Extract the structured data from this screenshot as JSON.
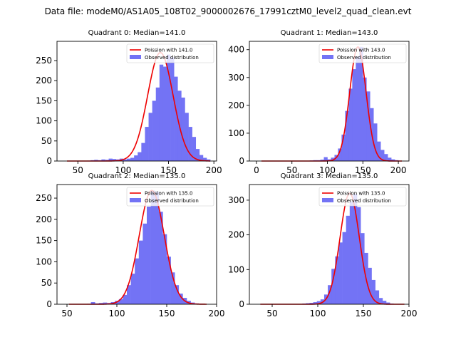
{
  "suptitle": "Data file: modeM0/AS1A05_108T02_9000002676_17991cztM0_level2_quad_clean.evt",
  "colors": {
    "hist": "#7373f5",
    "fit": "#ee0000",
    "axis": "#000000"
  },
  "chart_data": [
    {
      "type": "bar",
      "title": "Quadrant 0: Median=141.0",
      "legend": [
        "Poission with 141.0",
        "Observed distribution"
      ],
      "legend_position": "top-right",
      "xlim": [
        27,
        203
      ],
      "ylim": [
        0,
        298
      ],
      "xticks": [
        50,
        100,
        150,
        200
      ],
      "yticks": [
        0,
        50,
        100,
        150,
        200,
        250
      ],
      "bin_edges": [
        36,
        40,
        44,
        48,
        52,
        56,
        60,
        64,
        68,
        72,
        76,
        80,
        84,
        88,
        92,
        96,
        100,
        104,
        108,
        112,
        116,
        120,
        124,
        128,
        132,
        136,
        140,
        144,
        148,
        152,
        156,
        160,
        164,
        168,
        172,
        176,
        180,
        184,
        188,
        192,
        196
      ],
      "counts": [
        0,
        0,
        0,
        0,
        0,
        0,
        1,
        2,
        3,
        2,
        4,
        3,
        6,
        5,
        4,
        6,
        4,
        6,
        8,
        14,
        22,
        45,
        85,
        120,
        150,
        183,
        240,
        235,
        265,
        258,
        210,
        175,
        158,
        120,
        85,
        60,
        30,
        15,
        8,
        4
      ],
      "fit_mean": 141.0,
      "fit_peak": 270,
      "fit_sigma": 14.0
    },
    {
      "type": "bar",
      "title": "Quadrant 1: Median=143.0",
      "legend": [
        "Poission with 143.0",
        "Observed distribution"
      ],
      "legend_position": "top-right",
      "xlim": [
        -10,
        215
      ],
      "ylim": [
        0,
        430
      ],
      "xticks": [
        0,
        50,
        100,
        150,
        200
      ],
      "yticks": [
        0,
        100,
        200,
        300,
        400
      ],
      "bin_edges": [
        5,
        10,
        15,
        20,
        25,
        30,
        35,
        40,
        45,
        50,
        55,
        60,
        65,
        70,
        75,
        80,
        85,
        90,
        95,
        100,
        105,
        110,
        115,
        120,
        125,
        130,
        135,
        140,
        145,
        150,
        155,
        160,
        165,
        170,
        175,
        180,
        185,
        190,
        195,
        200,
        205
      ],
      "counts": [
        0,
        0,
        0,
        0,
        0,
        0,
        0,
        0,
        0,
        0,
        0,
        0,
        0,
        0,
        2,
        3,
        3,
        5,
        14,
        6,
        12,
        22,
        45,
        95,
        180,
        260,
        330,
        375,
        410,
        300,
        250,
        190,
        135,
        70,
        40,
        25,
        12,
        6,
        3,
        1
      ],
      "fit_mean": 143.0,
      "fit_peak": 410,
      "fit_sigma": 11.5
    },
    {
      "type": "bar",
      "title": "Quadrant 2: Median=135.0",
      "legend": [
        "Poission with 135.0",
        "Observed distribution"
      ],
      "legend_position": "top-right",
      "xlim": [
        40,
        200
      ],
      "ylim": [
        0,
        282
      ],
      "xticks": [
        50,
        100,
        150,
        200
      ],
      "yticks": [
        0,
        50,
        100,
        150,
        200,
        250
      ],
      "bin_edges": [
        50,
        54,
        58,
        62,
        66,
        70,
        74,
        78,
        82,
        86,
        90,
        94,
        98,
        102,
        106,
        110,
        114,
        118,
        122,
        126,
        130,
        134,
        138,
        142,
        146,
        150,
        154,
        158,
        162,
        166,
        170,
        174,
        178,
        182,
        186,
        190
      ],
      "counts": [
        0,
        0,
        0,
        0,
        0,
        1,
        5,
        2,
        3,
        4,
        3,
        5,
        8,
        12,
        22,
        45,
        72,
        108,
        150,
        190,
        230,
        268,
        265,
        218,
        165,
        112,
        75,
        45,
        25,
        15,
        8,
        4,
        2,
        1,
        0
      ],
      "fit_mean": 135.0,
      "fit_peak": 268,
      "fit_sigma": 12.5
    },
    {
      "type": "bar",
      "title": "Quadrant 3: Median=135.0",
      "legend": [
        "Poission with 135.0",
        "Observed distribution"
      ],
      "legend_position": "top-right",
      "xlim": [
        25,
        200
      ],
      "ylim": [
        0,
        345
      ],
      "xticks": [
        50,
        100,
        150,
        200
      ],
      "yticks": [
        0,
        100,
        200,
        300
      ],
      "bin_edges": [
        35,
        39,
        43,
        47,
        51,
        55,
        59,
        63,
        67,
        71,
        75,
        79,
        83,
        87,
        91,
        95,
        99,
        103,
        107,
        111,
        115,
        119,
        123,
        127,
        131,
        135,
        139,
        143,
        147,
        151,
        155,
        159,
        163,
        167,
        171,
        175,
        179,
        183,
        187,
        191,
        195
      ],
      "counts": [
        0,
        0,
        0,
        0,
        0,
        0,
        0,
        0,
        0,
        0,
        0,
        1,
        2,
        3,
        4,
        6,
        9,
        14,
        28,
        55,
        102,
        138,
        178,
        208,
        255,
        296,
        318,
        280,
        205,
        148,
        105,
        70,
        40,
        18,
        10,
        5,
        2,
        1,
        0,
        0
      ],
      "fit_mean": 135.0,
      "fit_peak": 320,
      "fit_sigma": 10.5
    }
  ]
}
